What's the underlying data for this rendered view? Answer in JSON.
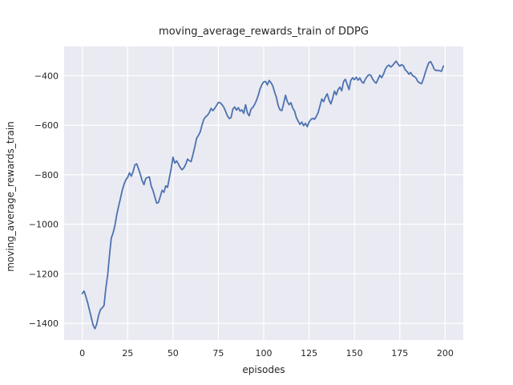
{
  "chart_data": {
    "type": "line",
    "title": "moving_average_rewards_train of DDPG",
    "xlabel": "episodes",
    "ylabel": "moving_average_rewards_train",
    "legend": null,
    "grid": true,
    "xlim": [
      -10,
      210
    ],
    "ylim": [
      -1468,
      -282
    ],
    "xticks": [
      0,
      25,
      50,
      75,
      100,
      125,
      150,
      175,
      200
    ],
    "yticks": [
      -400,
      -600,
      -800,
      -1000,
      -1200,
      -1400
    ],
    "x_start": 0,
    "x_step": 1,
    "n_points": 200,
    "y": [
      -1280,
      -1270,
      -1292,
      -1318,
      -1348,
      -1378,
      -1408,
      -1422,
      -1402,
      -1368,
      -1345,
      -1338,
      -1328,
      -1258,
      -1205,
      -1125,
      -1056,
      -1035,
      -1005,
      -962,
      -928,
      -897,
      -864,
      -839,
      -821,
      -811,
      -792,
      -806,
      -788,
      -760,
      -756,
      -776,
      -798,
      -824,
      -840,
      -815,
      -811,
      -809,
      -846,
      -864,
      -890,
      -915,
      -912,
      -888,
      -863,
      -871,
      -845,
      -851,
      -812,
      -776,
      -729,
      -753,
      -744,
      -757,
      -771,
      -780,
      -772,
      -758,
      -737,
      -743,
      -747,
      -718,
      -688,
      -653,
      -641,
      -627,
      -599,
      -576,
      -566,
      -560,
      -549,
      -532,
      -541,
      -532,
      -520,
      -508,
      -509,
      -517,
      -527,
      -544,
      -562,
      -573,
      -569,
      -535,
      -526,
      -539,
      -529,
      -543,
      -538,
      -552,
      -517,
      -550,
      -562,
      -535,
      -528,
      -516,
      -500,
      -479,
      -453,
      -436,
      -425,
      -423,
      -437,
      -419,
      -428,
      -441,
      -466,
      -488,
      -521,
      -538,
      -541,
      -512,
      -479,
      -504,
      -517,
      -509,
      -531,
      -543,
      -569,
      -584,
      -597,
      -587,
      -602,
      -592,
      -606,
      -587,
      -577,
      -572,
      -576,
      -564,
      -549,
      -522,
      -494,
      -505,
      -486,
      -473,
      -498,
      -514,
      -491,
      -462,
      -477,
      -456,
      -446,
      -461,
      -424,
      -414,
      -435,
      -456,
      -419,
      -408,
      -416,
      -406,
      -418,
      -409,
      -424,
      -430,
      -414,
      -403,
      -396,
      -398,
      -413,
      -424,
      -430,
      -414,
      -398,
      -408,
      -394,
      -374,
      -362,
      -357,
      -365,
      -359,
      -349,
      -341,
      -353,
      -361,
      -355,
      -360,
      -376,
      -383,
      -394,
      -387,
      -399,
      -403,
      -410,
      -424,
      -429,
      -432,
      -413,
      -389,
      -366,
      -347,
      -343,
      -357,
      -374,
      -379,
      -378,
      -380,
      -382,
      -361
    ],
    "colors": {
      "line": "#4C72B0",
      "axes_background": "#EAEAF2",
      "grid": "#FFFFFF",
      "text": "#262626",
      "figure_background": "#FFFFFF"
    }
  }
}
